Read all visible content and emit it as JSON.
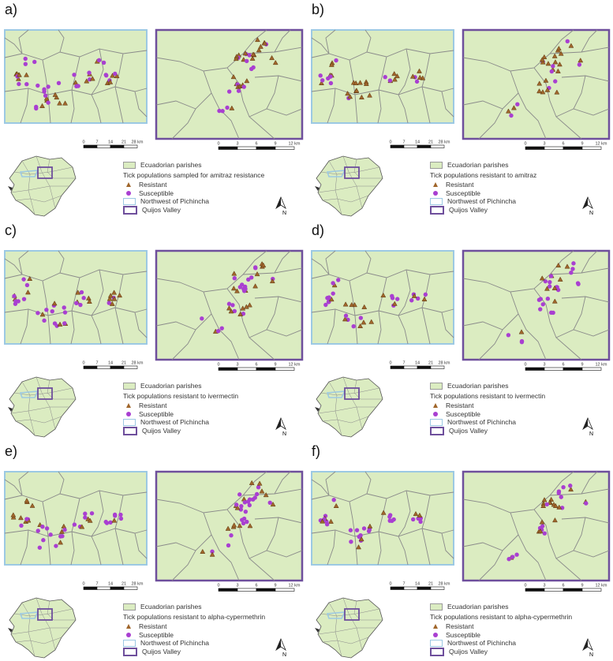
{
  "panels": [
    {
      "label": "a)",
      "legend_title": "Tick populations sampled for amitraz resistance"
    },
    {
      "label": "b)",
      "legend_title": "Tick populations resistant to amitraz"
    },
    {
      "label": "c)",
      "legend_title": "Tick populations resistant to ivermectin"
    },
    {
      "label": "d)",
      "legend_title": "Tick populations resistant to ivermectin"
    },
    {
      "label": "e)",
      "legend_title": "Tick populations resistant to alpha-cypermethrin"
    },
    {
      "label": "f)",
      "legend_title": "Tick populations resistant to alpha-cypermethrin"
    }
  ],
  "legend": {
    "parishes": "Ecuadorian parishes",
    "resistant": "Resistant",
    "susceptible": "Susceptible",
    "northwest": "Northwest of Pichincha",
    "quijos": "Quijos Valley"
  },
  "scale_left": [
    "0",
    "7",
    "14",
    "21",
    "28 km"
  ],
  "scale_left_alt": [
    "0",
    "7",
    "14",
    "21",
    "28 km"
  ],
  "scale_right": [
    "0",
    "3",
    "6",
    "9",
    "12 km"
  ],
  "north_label": "N",
  "colors": {
    "map_fill": "#dbecc1",
    "northwest_frame": "#9cc9e3",
    "quijos_frame": "#6e4f9c",
    "resistant": "#a0662b",
    "susceptible": "#a93fd1",
    "boundary": "#8a8a8a"
  }
}
